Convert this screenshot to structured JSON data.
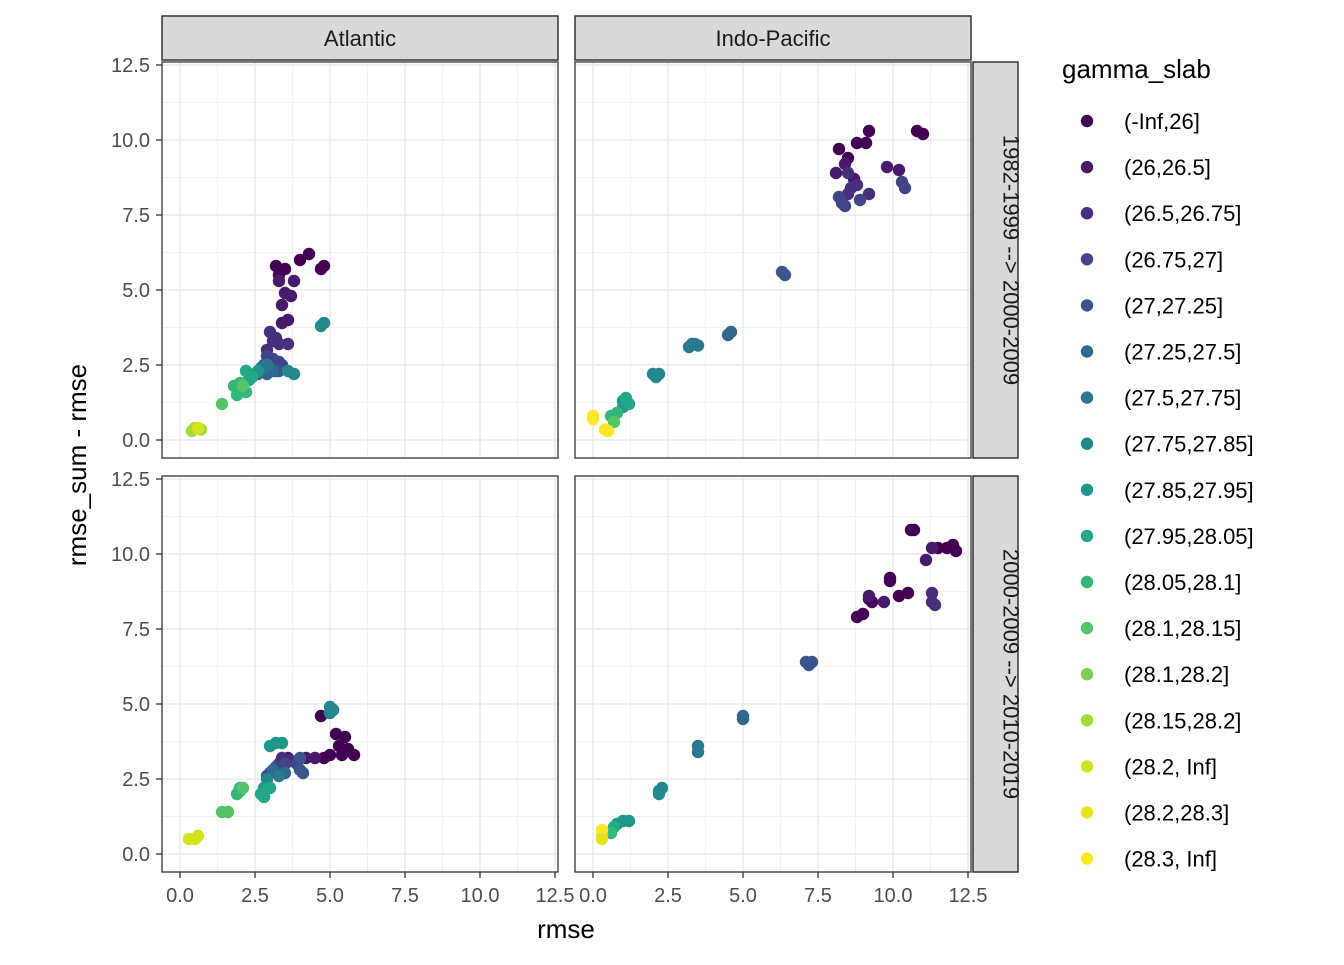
{
  "chart_data": {
    "type": "scatter",
    "xlabel": "rmse",
    "ylabel": "rmse_sum - rmse",
    "xlim": [
      -0.6,
      12.6
    ],
    "ylim": [
      -0.6,
      12.6
    ],
    "x_ticks": [
      0,
      2.5,
      5,
      7.5,
      10,
      12.5
    ],
    "x_tick_labels": [
      "0.0",
      "2.5",
      "5.0",
      "7.5",
      "10.0",
      "12.5"
    ],
    "y_ticks": [
      0,
      2.5,
      5,
      7.5,
      10,
      12.5
    ],
    "y_tick_labels": [
      "0.0",
      "2.5",
      "5.0",
      "7.5",
      "10.0",
      "12.5"
    ],
    "col_facets": [
      "Atlantic",
      "Indo-Pacific"
    ],
    "row_facets": [
      "1982-1999 --> 2000-2009",
      "2000-2009 --> 2010-2019"
    ],
    "legend": {
      "title": "gamma_slab",
      "position": "right",
      "items": [
        {
          "label": "(-Inf,26]",
          "color": "#440154"
        },
        {
          "label": "(26,26.5]",
          "color": "#481a6c"
        },
        {
          "label": "(26.5,26.75]",
          "color": "#472f7d"
        },
        {
          "label": "(26.75,27]",
          "color": "#414487"
        },
        {
          "label": "(27,27.25]",
          "color": "#39568c"
        },
        {
          "label": "(27.25,27.5]",
          "color": "#31688e"
        },
        {
          "label": "(27.5,27.75]",
          "color": "#2a788e"
        },
        {
          "label": "(27.75,27.85]",
          "color": "#23888e"
        },
        {
          "label": "(27.85,27.95]",
          "color": "#1f988b"
        },
        {
          "label": "(27.95,28.05]",
          "color": "#22a884"
        },
        {
          "label": "(28.05,28.1]",
          "color": "#35b779"
        },
        {
          "label": "(28.1,28.15]",
          "color": "#54c568"
        },
        {
          "label": "(28.1,28.2]",
          "color": "#7ad151"
        },
        {
          "label": "(28.15,28.2]",
          "color": "#a5db36"
        },
        {
          "label": "(28.2, Inf]",
          "color": "#d2e21b"
        },
        {
          "label": "(28.2,28.3]",
          "color": "#e5e419"
        },
        {
          "label": "(28.3, Inf]",
          "color": "#fde725"
        }
      ]
    },
    "panels": [
      {
        "col": "Atlantic",
        "row": "1982-1999 --> 2000-2009",
        "points": [
          [
            3.2,
            5.8,
            0
          ],
          [
            3.5,
            5.7,
            0
          ],
          [
            4.0,
            6.0,
            0
          ],
          [
            4.3,
            6.2,
            0
          ],
          [
            4.7,
            5.7,
            0
          ],
          [
            4.8,
            5.8,
            0
          ],
          [
            3.3,
            5.5,
            0
          ],
          [
            3.3,
            5.3,
            1
          ],
          [
            3.8,
            5.3,
            1
          ],
          [
            3.5,
            4.9,
            1
          ],
          [
            3.7,
            4.8,
            1
          ],
          [
            3.4,
            4.5,
            1
          ],
          [
            3.6,
            4.0,
            1
          ],
          [
            3.4,
            3.9,
            1
          ],
          [
            3.0,
            3.6,
            2
          ],
          [
            3.1,
            3.3,
            2
          ],
          [
            3.2,
            3.4,
            2
          ],
          [
            3.3,
            3.2,
            2
          ],
          [
            3.6,
            3.2,
            2
          ],
          [
            2.9,
            3.0,
            2
          ],
          [
            2.9,
            2.8,
            3
          ],
          [
            3.1,
            2.7,
            3
          ],
          [
            3.3,
            2.6,
            3
          ],
          [
            3.4,
            2.5,
            3
          ],
          [
            2.8,
            2.5,
            4
          ],
          [
            3.0,
            2.4,
            4
          ],
          [
            3.2,
            2.3,
            4
          ],
          [
            3.3,
            2.3,
            4
          ],
          [
            2.6,
            2.2,
            5
          ],
          [
            2.9,
            2.2,
            5
          ],
          [
            3.1,
            2.3,
            5
          ],
          [
            2.7,
            2.4,
            6
          ],
          [
            2.9,
            2.5,
            6
          ],
          [
            3.6,
            2.3,
            7
          ],
          [
            3.8,
            2.2,
            7
          ],
          [
            4.7,
            3.8,
            7
          ],
          [
            4.8,
            3.9,
            7
          ],
          [
            2.3,
            2.2,
            8
          ],
          [
            2.4,
            2.1,
            8
          ],
          [
            2.6,
            2.3,
            8
          ],
          [
            2.2,
            2.3,
            9
          ],
          [
            2.3,
            2.0,
            9
          ],
          [
            2.4,
            2.1,
            9
          ],
          [
            1.8,
            1.8,
            10
          ],
          [
            2.0,
            1.9,
            10
          ],
          [
            2.2,
            1.6,
            10
          ],
          [
            1.9,
            1.5,
            10
          ],
          [
            1.4,
            1.2,
            11
          ],
          [
            2.1,
            1.8,
            11
          ],
          [
            0.5,
            0.4,
            13
          ],
          [
            0.4,
            0.3,
            13
          ],
          [
            0.7,
            0.35,
            13
          ],
          [
            0.6,
            0.4,
            14
          ]
        ]
      },
      {
        "col": "Indo-Pacific",
        "row": "1982-1999 --> 2000-2009",
        "points": [
          [
            9.2,
            10.3,
            0
          ],
          [
            10.8,
            10.3,
            0
          ],
          [
            11.0,
            10.2,
            0
          ],
          [
            8.8,
            9.9,
            0
          ],
          [
            9.1,
            9.9,
            0
          ],
          [
            8.2,
            9.7,
            0
          ],
          [
            8.5,
            9.4,
            0
          ],
          [
            8.1,
            8.9,
            1
          ],
          [
            8.4,
            9.2,
            1
          ],
          [
            8.7,
            8.7,
            1
          ],
          [
            9.8,
            9.1,
            1
          ],
          [
            10.2,
            9.0,
            1
          ],
          [
            8.6,
            8.4,
            2
          ],
          [
            8.8,
            8.5,
            2
          ],
          [
            8.5,
            8.2,
            2
          ],
          [
            9.2,
            8.2,
            2
          ],
          [
            8.5,
            8.9,
            2
          ],
          [
            8.2,
            8.1,
            3
          ],
          [
            8.3,
            7.9,
            3
          ],
          [
            8.4,
            7.8,
            3
          ],
          [
            10.3,
            8.6,
            3
          ],
          [
            10.4,
            8.4,
            3
          ],
          [
            8.9,
            8.0,
            3
          ],
          [
            6.3,
            5.6,
            4
          ],
          [
            6.4,
            5.5,
            4
          ],
          [
            4.5,
            3.5,
            5
          ],
          [
            4.6,
            3.6,
            5
          ],
          [
            3.2,
            3.1,
            6
          ],
          [
            3.4,
            3.2,
            6
          ],
          [
            3.5,
            3.15,
            6
          ],
          [
            3.3,
            3.2,
            6
          ],
          [
            2.0,
            2.2,
            7
          ],
          [
            2.1,
            2.1,
            7
          ],
          [
            2.2,
            2.2,
            7
          ],
          [
            1.0,
            1.3,
            8
          ],
          [
            1.1,
            1.2,
            8
          ],
          [
            1.0,
            1.1,
            8
          ],
          [
            1.1,
            1.4,
            9
          ],
          [
            1.2,
            1.2,
            9
          ],
          [
            0.6,
            0.8,
            10
          ],
          [
            0.8,
            0.9,
            10
          ],
          [
            0.7,
            0.6,
            11
          ],
          [
            0.0,
            0.7,
            16
          ],
          [
            0.0,
            0.8,
            16
          ],
          [
            0.5,
            0.3,
            16
          ],
          [
            0.4,
            0.35,
            16
          ]
        ]
      },
      {
        "col": "Atlantic",
        "row": "2000-2009 --> 2010-2019",
        "points": [
          [
            4.7,
            4.6,
            0
          ],
          [
            5.1,
            4.8,
            0
          ],
          [
            5.2,
            4.0,
            0
          ],
          [
            5.5,
            3.9,
            0
          ],
          [
            5.3,
            3.6,
            0
          ],
          [
            5.6,
            3.5,
            0
          ],
          [
            5.8,
            3.3,
            0
          ],
          [
            5.0,
            3.3,
            0
          ],
          [
            4.8,
            3.2,
            0
          ],
          [
            5.4,
            3.3,
            0
          ],
          [
            3.6,
            3.2,
            1
          ],
          [
            3.9,
            3.1,
            1
          ],
          [
            4.2,
            3.2,
            1
          ],
          [
            4.5,
            3.2,
            1
          ],
          [
            3.4,
            3.2,
            2
          ],
          [
            3.7,
            3.1,
            2
          ],
          [
            3.3,
            3.0,
            2
          ],
          [
            3.2,
            2.9,
            3
          ],
          [
            3.5,
            3.0,
            3
          ],
          [
            3.9,
            3.0,
            3
          ],
          [
            3.0,
            2.7,
            3
          ],
          [
            2.9,
            2.6,
            3
          ],
          [
            4.0,
            2.8,
            4
          ],
          [
            4.1,
            2.7,
            4
          ],
          [
            4.0,
            3.2,
            4
          ],
          [
            3.1,
            2.8,
            5
          ],
          [
            3.5,
            2.7,
            5
          ],
          [
            3.3,
            2.6,
            6
          ],
          [
            2.9,
            2.5,
            7
          ],
          [
            5.0,
            4.9,
            7
          ],
          [
            5.1,
            4.8,
            7
          ],
          [
            5.0,
            4.7,
            7
          ],
          [
            3.0,
            3.6,
            8
          ],
          [
            3.2,
            3.7,
            8
          ],
          [
            3.4,
            3.7,
            8
          ],
          [
            2.8,
            2.2,
            8
          ],
          [
            2.7,
            2.0,
            9
          ],
          [
            2.8,
            1.9,
            9
          ],
          [
            3.0,
            2.2,
            9
          ],
          [
            2.0,
            2.1,
            10
          ],
          [
            1.9,
            2.0,
            10
          ],
          [
            2.0,
            2.2,
            10
          ],
          [
            1.4,
            1.4,
            11
          ],
          [
            1.6,
            1.4,
            11
          ],
          [
            2.1,
            2.2,
            11
          ],
          [
            0.3,
            0.5,
            14
          ],
          [
            0.5,
            0.5,
            14
          ],
          [
            0.6,
            0.6,
            14
          ]
        ]
      },
      {
        "col": "Indo-Pacific",
        "row": "2000-2009 --> 2010-2019",
        "points": [
          [
            10.6,
            10.8,
            0
          ],
          [
            10.7,
            10.8,
            0
          ],
          [
            11.5,
            10.2,
            0
          ],
          [
            11.8,
            10.2,
            0
          ],
          [
            12.0,
            10.3,
            0
          ],
          [
            12.1,
            10.1,
            0
          ],
          [
            9.9,
            9.2,
            0
          ],
          [
            9.9,
            9.1,
            0
          ],
          [
            9.2,
            8.5,
            0
          ],
          [
            9.3,
            8.4,
            0
          ],
          [
            9.0,
            8.0,
            0
          ],
          [
            8.8,
            7.9,
            0
          ],
          [
            10.2,
            8.6,
            0
          ],
          [
            10.5,
            8.7,
            0
          ],
          [
            9.2,
            8.6,
            1
          ],
          [
            9.7,
            8.4,
            1
          ],
          [
            11.1,
            9.8,
            1
          ],
          [
            11.3,
            10.2,
            1
          ],
          [
            11.3,
            8.7,
            2
          ],
          [
            11.3,
            8.4,
            2
          ],
          [
            11.4,
            8.3,
            2
          ],
          [
            7.1,
            6.4,
            4
          ],
          [
            7.2,
            6.3,
            4
          ],
          [
            7.3,
            6.4,
            4
          ],
          [
            5.0,
            4.6,
            5
          ],
          [
            5.0,
            4.5,
            5
          ],
          [
            3.5,
            3.6,
            6
          ],
          [
            3.5,
            3.4,
            6
          ],
          [
            2.2,
            2.1,
            7
          ],
          [
            2.2,
            2.0,
            7
          ],
          [
            2.3,
            2.2,
            7
          ],
          [
            1.2,
            1.1,
            8
          ],
          [
            1.0,
            1.1,
            8
          ],
          [
            0.8,
            1.0,
            8
          ],
          [
            0.7,
            0.9,
            9
          ],
          [
            0.6,
            0.7,
            10
          ],
          [
            0.3,
            0.6,
            15
          ],
          [
            0.3,
            0.8,
            16
          ],
          [
            0.3,
            0.5,
            15
          ]
        ]
      }
    ]
  }
}
